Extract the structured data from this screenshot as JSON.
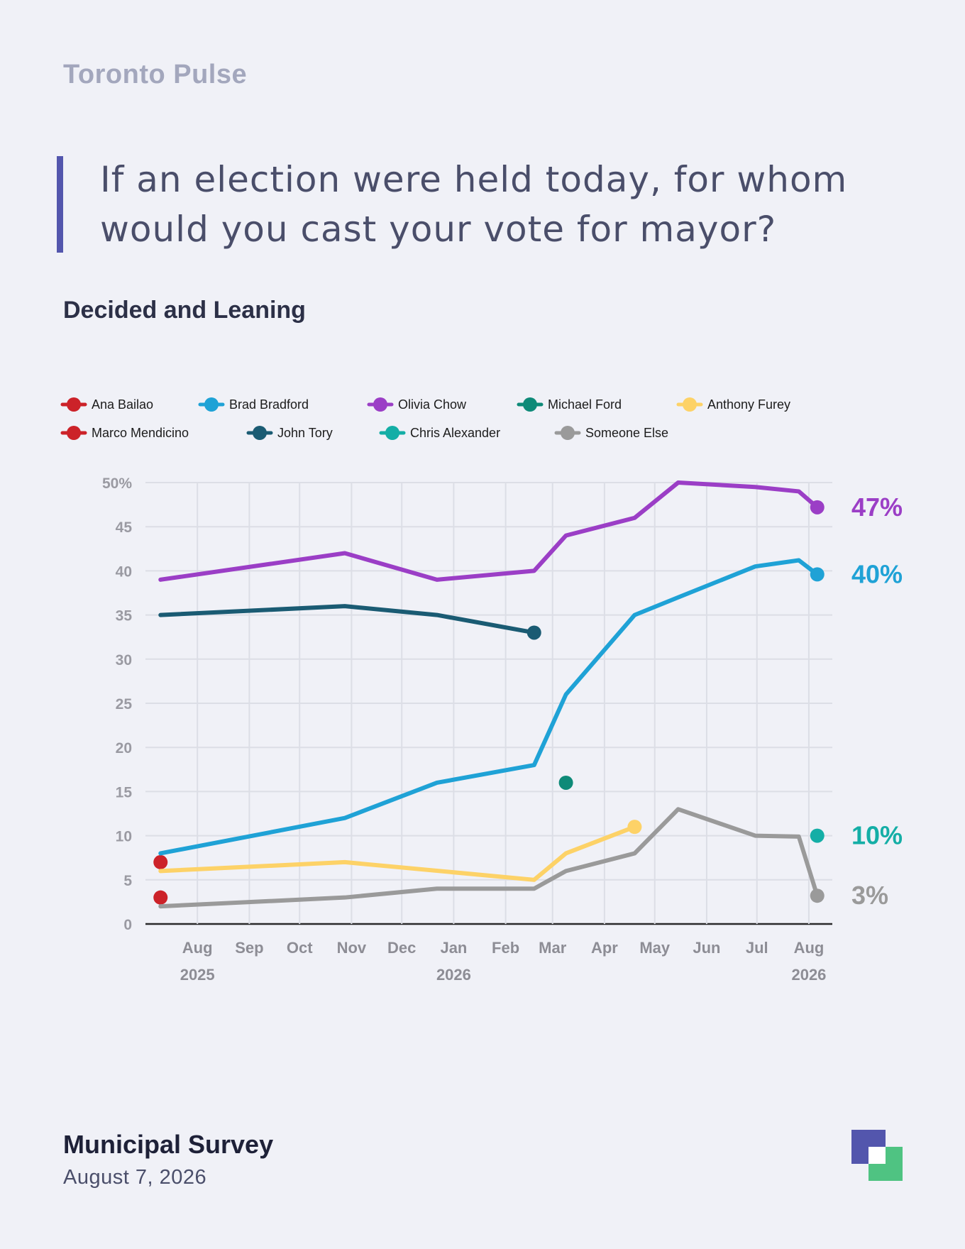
{
  "brand": "Toronto Pulse",
  "question": "If an election were held today, for whom would you cast your vote for mayor?",
  "subtitle": "Decided and Leaning",
  "footer": {
    "title": "Municipal Survey",
    "date": "August 7, 2026"
  },
  "colors": {
    "accent": "#5356ad",
    "logo_green": "#4fc382",
    "grid": "#dcdee6",
    "axis_text": "#9a9aa2"
  },
  "chart_data": {
    "type": "line",
    "title": "Decided and Leaning",
    "ylim": [
      0,
      50
    ],
    "yticks": [
      0,
      5,
      10,
      15,
      20,
      25,
      30,
      35,
      40,
      45,
      50
    ],
    "ytick_labels": [
      "0",
      "5",
      "10",
      "15",
      "20",
      "25",
      "30",
      "35",
      "40",
      "45",
      "50%"
    ],
    "xlim": [
      "2025-07-01",
      "2026-08-15"
    ],
    "xticks": [
      {
        "date": "2025-08-01",
        "label": "Aug",
        "year": "2025"
      },
      {
        "date": "2025-09-01",
        "label": "Sep",
        "year": ""
      },
      {
        "date": "2025-10-01",
        "label": "Oct",
        "year": ""
      },
      {
        "date": "2025-11-01",
        "label": "Nov",
        "year": ""
      },
      {
        "date": "2025-12-01",
        "label": "Dec",
        "year": ""
      },
      {
        "date": "2026-01-01",
        "label": "Jan",
        "year": "2026"
      },
      {
        "date": "2026-02-01",
        "label": "Feb",
        "year": ""
      },
      {
        "date": "2026-03-01",
        "label": "Mar",
        "year": ""
      },
      {
        "date": "2026-04-01",
        "label": "Apr",
        "year": ""
      },
      {
        "date": "2026-05-01",
        "label": "May",
        "year": ""
      },
      {
        "date": "2026-06-01",
        "label": "Jun",
        "year": ""
      },
      {
        "date": "2026-07-01",
        "label": "Jul",
        "year": ""
      },
      {
        "date": "2026-08-01",
        "label": "Aug",
        "year": "2026"
      }
    ],
    "grid": true,
    "legend_position": "top",
    "series": [
      {
        "name": "Ana Bailao",
        "color": "#cc2229",
        "points": [
          [
            "2025-07-10",
            7
          ]
        ],
        "end_marker": true,
        "end_label": ""
      },
      {
        "name": "Brad Bradford",
        "color": "#1fa2d6",
        "points": [
          [
            "2025-07-10",
            8
          ],
          [
            "2025-10-28",
            12
          ],
          [
            "2025-12-22",
            16
          ],
          [
            "2026-02-18",
            18
          ],
          [
            "2026-03-09",
            26
          ],
          [
            "2026-04-19",
            35
          ],
          [
            "2026-05-15",
            37
          ],
          [
            "2026-06-30",
            40.5
          ],
          [
            "2026-07-26",
            41.2
          ],
          [
            "2026-08-06",
            39.6
          ]
        ],
        "end_marker": true,
        "end_label": "40%"
      },
      {
        "name": "Olivia Chow",
        "color": "#9b3ec6",
        "points": [
          [
            "2025-07-10",
            39
          ],
          [
            "2025-10-28",
            42
          ],
          [
            "2025-12-22",
            39
          ],
          [
            "2026-02-18",
            40
          ],
          [
            "2026-03-09",
            44
          ],
          [
            "2026-04-19",
            46
          ],
          [
            "2026-05-15",
            50
          ],
          [
            "2026-06-30",
            49.5
          ],
          [
            "2026-07-26",
            49
          ],
          [
            "2026-08-06",
            47.2
          ]
        ],
        "end_marker": true,
        "end_label": "47%"
      },
      {
        "name": "Michael Ford",
        "color": "#0e8a78",
        "points": [
          [
            "2026-03-09",
            16
          ]
        ],
        "end_marker": true,
        "end_label": ""
      },
      {
        "name": "Anthony Furey",
        "color": "#fdd267",
        "points": [
          [
            "2025-07-10",
            6
          ],
          [
            "2025-10-28",
            7
          ],
          [
            "2026-02-18",
            5
          ],
          [
            "2026-03-09",
            8
          ],
          [
            "2026-04-19",
            11
          ]
        ],
        "end_marker": true,
        "end_label": ""
      },
      {
        "name": "Marco Mendicino",
        "color": "#cc2229",
        "points": [
          [
            "2025-07-10",
            3
          ]
        ],
        "end_marker": true,
        "end_label": ""
      },
      {
        "name": "John Tory",
        "color": "#1a5b73",
        "points": [
          [
            "2025-07-10",
            35
          ],
          [
            "2025-10-28",
            36
          ],
          [
            "2025-12-22",
            35
          ],
          [
            "2026-02-18",
            33
          ]
        ],
        "end_marker": true,
        "end_label": ""
      },
      {
        "name": "Chris Alexander",
        "color": "#14aea6",
        "points": [
          [
            "2026-08-06",
            10
          ]
        ],
        "end_marker": true,
        "end_label": "10%"
      },
      {
        "name": "Someone Else",
        "color": "#9a9a9a",
        "points": [
          [
            "2025-07-10",
            2
          ],
          [
            "2025-10-28",
            3
          ],
          [
            "2025-12-22",
            4
          ],
          [
            "2026-02-18",
            4
          ],
          [
            "2026-03-09",
            6
          ],
          [
            "2026-04-19",
            8
          ],
          [
            "2026-05-15",
            13
          ],
          [
            "2026-06-30",
            10
          ],
          [
            "2026-07-26",
            9.9
          ],
          [
            "2026-08-06",
            3.2
          ]
        ],
        "end_marker": true,
        "end_label": "3%"
      }
    ]
  }
}
